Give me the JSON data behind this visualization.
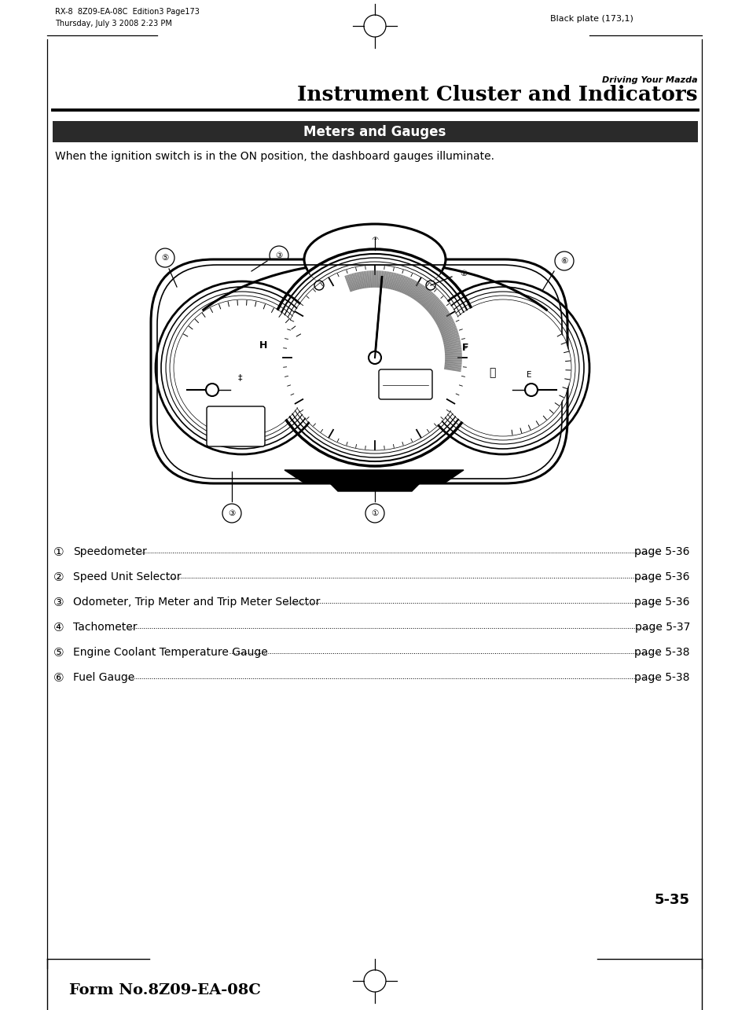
{
  "page_header_left_line1": "RX-8  8Z09-EA-08C  Edition3 Page173",
  "page_header_left_line2": "Thursday, July 3 2008 2:23 PM",
  "page_header_right": "Black plate (173,1)",
  "section_label": "Driving Your Mazda",
  "section_title": "Instrument Cluster and Indicators",
  "subsection_title": "Meters and Gauges",
  "subsection_bg": "#2a2a2a",
  "subsection_fg": "#ffffff",
  "body_text": "When the ignition switch is in the ON position, the dashboard gauges illuminate.",
  "list_items": [
    [
      "1",
      "Speedometer",
      "page 5-36"
    ],
    [
      "2",
      "Speed Unit Selector",
      "page 5-36"
    ],
    [
      "3",
      "Odometer, Trip Meter and Trip Meter Selector",
      "page 5-36"
    ],
    [
      "4",
      "Tachometer",
      "page 5-37"
    ],
    [
      "5",
      "Engine Coolant Temperature Gauge",
      "page 5-38"
    ],
    [
      "6",
      "Fuel Gauge",
      "page 5-38"
    ]
  ],
  "page_number": "5-35",
  "footer_text": "Form No.8Z09-EA-08C",
  "bg_color": "#ffffff",
  "text_color": "#000000"
}
